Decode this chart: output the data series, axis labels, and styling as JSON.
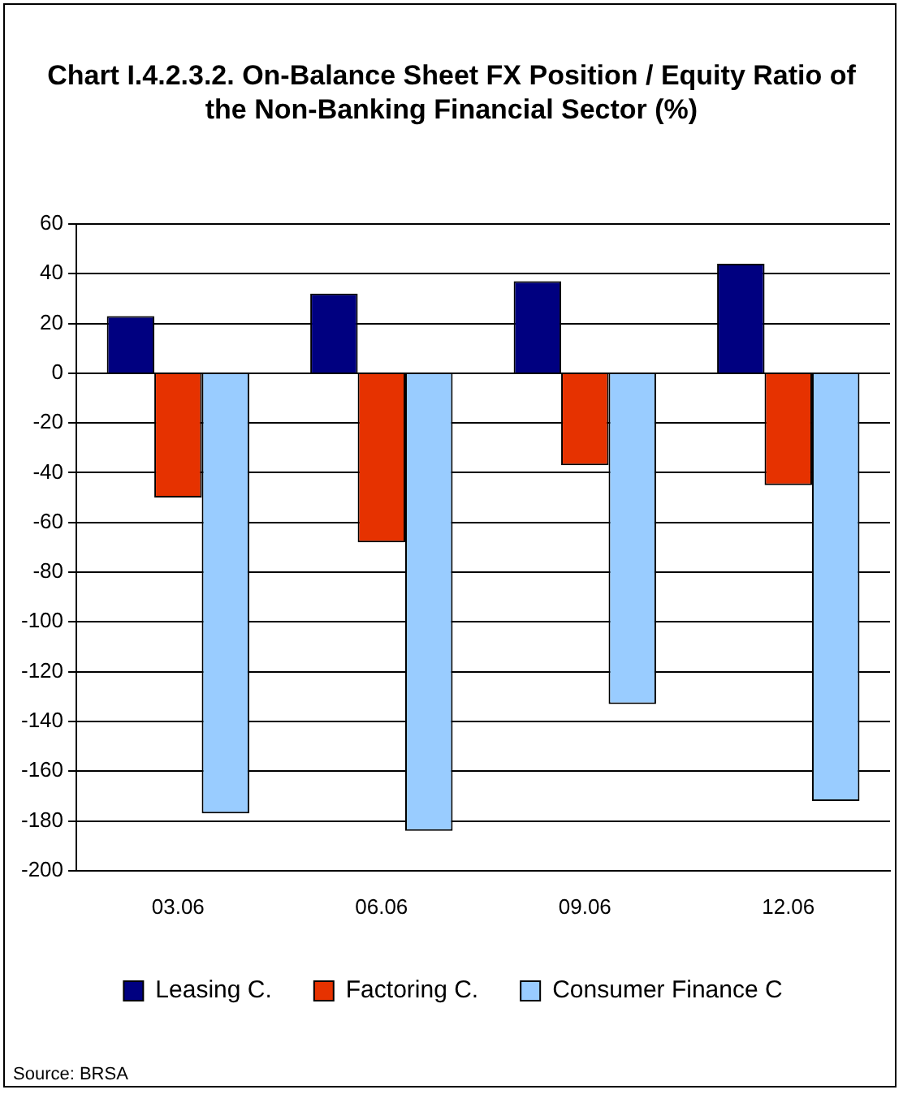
{
  "chart_data": {
    "type": "bar",
    "title": "Chart I.4.2.3.2. On-Balance Sheet FX Position / Equity Ratio of the Non-Banking Financial Sector (%)",
    "categories": [
      "03.06",
      "06.06",
      "09.06",
      "12.06"
    ],
    "series": [
      {
        "name": "Leasing C.",
        "color": "#000080",
        "values": [
          23,
          32,
          37,
          44
        ]
      },
      {
        "name": "Factoring C.",
        "color": "#e63200",
        "values": [
          -50,
          -68,
          -37,
          -45
        ]
      },
      {
        "name": "Consumer Finance C",
        "color": "#99ccff",
        "values": [
          -177,
          -184,
          -133,
          -172
        ]
      }
    ],
    "ylim": [
      -200,
      60
    ],
    "yticks": [
      -200,
      -180,
      -160,
      -140,
      -120,
      -100,
      -80,
      -60,
      -40,
      -20,
      0,
      20,
      40,
      60
    ],
    "grid": "y",
    "legend": "bottom",
    "annotations": [
      "Source: BRSA"
    ]
  }
}
